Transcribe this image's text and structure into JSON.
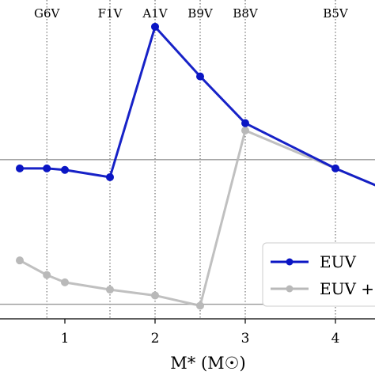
{
  "chart_data": {
    "type": "line",
    "x": [
      0.5,
      0.8,
      1.0,
      1.5,
      2.0,
      2.5,
      3.0,
      4.0,
      4.5
    ],
    "series": [
      {
        "name": "EUV",
        "color": "#0b16c4",
        "x": [
          0.5,
          0.8,
          1.0,
          1.5,
          2.0,
          2.5,
          3.0,
          4.0,
          4.5
        ],
        "values": [
          0.515,
          0.515,
          0.51,
          0.485,
          1.0,
          0.83,
          0.67,
          0.515,
          0.45
        ]
      },
      {
        "name": "EUV +",
        "color": "#b9b9b9",
        "x": [
          0.5,
          0.8,
          1.0,
          1.5,
          2.0,
          2.5,
          3.0,
          4.0,
          4.5
        ],
        "values": [
          0.2,
          0.15,
          0.125,
          0.1,
          0.08,
          0.045,
          0.645,
          0.515,
          0.45
        ]
      }
    ],
    "spectral_types": [
      {
        "label": "G6V",
        "x": 0.8
      },
      {
        "label": "F1V",
        "x": 1.5
      },
      {
        "label": "A1V",
        "x": 2.0
      },
      {
        "label": "B9V",
        "x": 2.5
      },
      {
        "label": "B8V",
        "x": 3.0
      },
      {
        "label": "B5V",
        "x": 4.0
      }
    ],
    "hlines": [
      0.545,
      0.05
    ],
    "xticks": [
      1,
      2,
      3,
      4
    ],
    "xtick_labels": [
      "1",
      "2",
      "3",
      "4"
    ],
    "xlabel": "M* (M☉)",
    "xlim": [
      0.4,
      4.5
    ],
    "ylim": [
      0.0,
      1.07
    ],
    "legend_position": "lower-right",
    "grid": false
  }
}
